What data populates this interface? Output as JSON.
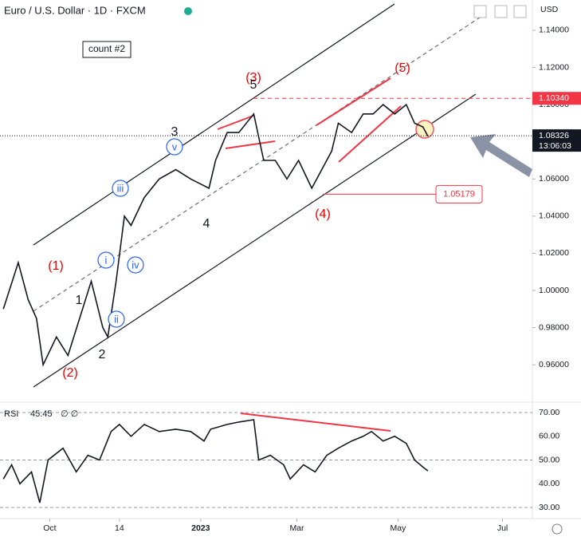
{
  "chart_data": [
    {
      "type": "line",
      "title": "Euro / U.S. Dollar · 1D · FXCM",
      "currency": "USD",
      "color": "#131722",
      "x": [
        2,
        11,
        17,
        22,
        26,
        34,
        41,
        48,
        55,
        62,
        65,
        70,
        75,
        79,
        87,
        96,
        106,
        115,
        126,
        130,
        137,
        144,
        153,
        159,
        166,
        173,
        180,
        188,
        194,
        200,
        204,
        212,
        219,
        225,
        231,
        238,
        245,
        250,
        255,
        258
      ],
      "values": [
        0.99,
        1.015,
        0.995,
        0.985,
        0.96,
        0.975,
        0.965,
        0.985,
        1.005,
        0.98,
        0.975,
        1.005,
        1.04,
        1.035,
        1.05,
        1.06,
        1.065,
        1.06,
        1.055,
        1.07,
        1.085,
        1.085,
        1.095,
        1.07,
        1.07,
        1.06,
        1.07,
        1.055,
        1.065,
        1.075,
        1.09,
        1.085,
        1.095,
        1.095,
        1.1,
        1.095,
        1.1,
        1.09,
        1.088,
        1.083
      ],
      "xlim": [
        0,
        321
      ],
      "xticks": [
        {
          "value": 30,
          "label": "Oct"
        },
        {
          "value": 72,
          "label": "14"
        },
        {
          "value": 121,
          "label": "2023"
        },
        {
          "value": 179,
          "label": "Mar"
        },
        {
          "value": 240,
          "label": "May"
        },
        {
          "value": 303,
          "label": "Jul"
        }
      ],
      "ylim": [
        0.9399,
        1.1563
      ],
      "yticks": [
        {
          "value": 0.96,
          "label": "0.96000"
        },
        {
          "value": 0.98,
          "label": "0.98000"
        },
        {
          "value": 1,
          "label": "1.00000"
        },
        {
          "value": 1.02,
          "label": "1.02000"
        },
        {
          "value": 1.04,
          "label": "1.04000"
        },
        {
          "value": 1.06,
          "label": "1.06000"
        },
        {
          "value": 1.08,
          "label": "1.08000"
        },
        {
          "value": 1.1,
          "label": "1.10000"
        },
        {
          "value": 1.12,
          "label": "1.12000"
        },
        {
          "value": 1.14,
          "label": "1.14000"
        }
      ],
      "price_labels": [
        {
          "value": 1.1034,
          "label": "1.10340"
        },
        {
          "value": 1.08326,
          "label": "1.08326"
        },
        {
          "value": 1.05179,
          "label": "1.05179"
        }
      ],
      "countdown": "13:06:03",
      "annotation": "count #2",
      "wave_labels": [
        "(1)",
        "(2)",
        "(3)",
        "(4)",
        "(5)",
        "1",
        "2",
        "3",
        "4",
        "5",
        "i",
        "ii",
        "iii",
        "iv",
        "v"
      ]
    },
    {
      "type": "line",
      "title": "RSI",
      "last_value": 45.45,
      "color": "#131722",
      "x": [
        2,
        7,
        12,
        19,
        24,
        29,
        38,
        46,
        53,
        60,
        67,
        72,
        79,
        87,
        96,
        106,
        115,
        123,
        127,
        137,
        144,
        153,
        156,
        163,
        171,
        175,
        183,
        190,
        197,
        204,
        212,
        219,
        224,
        231,
        238,
        245,
        250,
        255,
        258
      ],
      "values": [
        42,
        48,
        40,
        45,
        32,
        50,
        55,
        45,
        52,
        50,
        62,
        65,
        60,
        65,
        62,
        63,
        62,
        58,
        63,
        65,
        66,
        67,
        50,
        52,
        48,
        42,
        48,
        45,
        52,
        55,
        58,
        60,
        62,
        58,
        60,
        57,
        50,
        47,
        45.45
      ],
      "ylim": [
        25.3,
        72.7
      ],
      "yticks": [
        {
          "value": 30,
          "label": "30.00"
        },
        {
          "value": 40,
          "label": "40.00"
        },
        {
          "value": 50,
          "label": "50.00"
        },
        {
          "value": 60,
          "label": "60.00"
        },
        {
          "value": 70,
          "label": "70.00"
        }
      ]
    }
  ]
}
